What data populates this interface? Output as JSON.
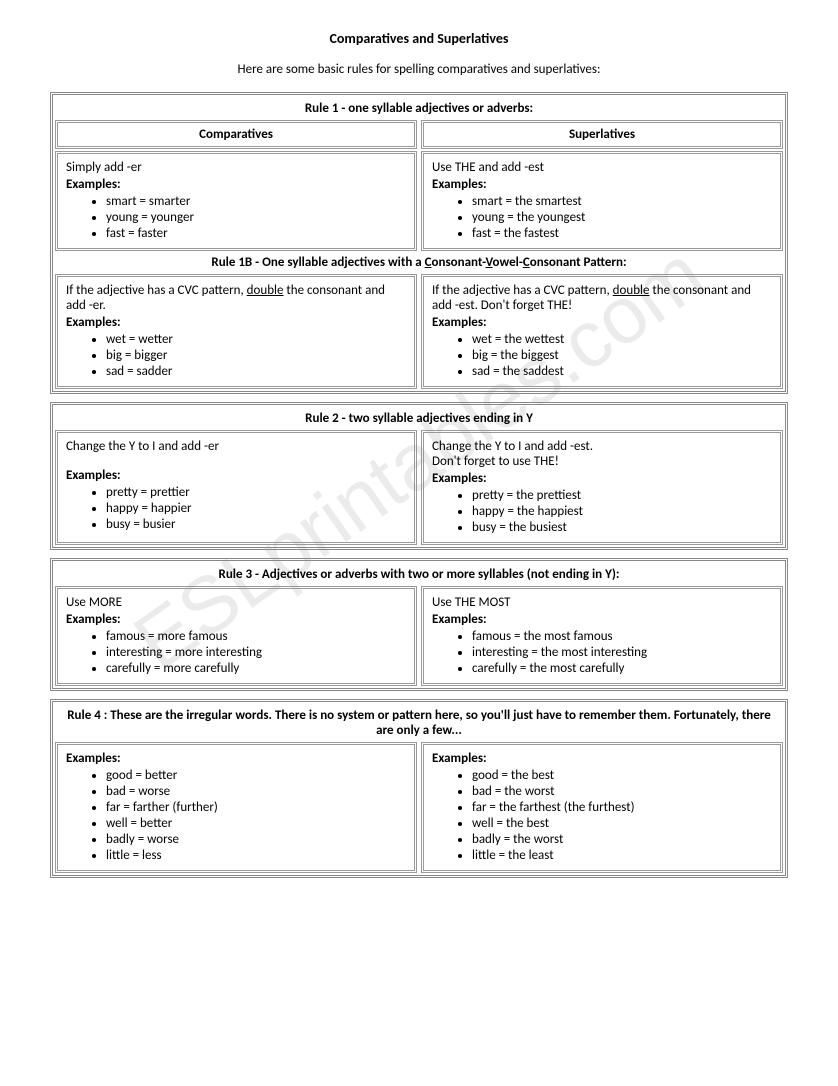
{
  "title": "Comparatives and Superlatives",
  "intro": "Here are some basic rules for spelling comparatives and superlatives:",
  "watermark": "ESLprintables.com",
  "rules": [
    {
      "title": "Rule 1 - one syllable adjectives or adverbs:",
      "headers": {
        "left": "Comparatives",
        "right": "Superlatives"
      },
      "left": {
        "instruction": "Simply add -er",
        "examples_label": "Examples:",
        "items": [
          "smart = smarter",
          "young = younger",
          "fast = faster"
        ]
      },
      "right": {
        "instruction": "Use THE  and add -est",
        "examples_label": "Examples:",
        "items": [
          "smart = the smartest",
          "young = the youngest",
          "fast = the fastest"
        ]
      }
    },
    {
      "title_html": "Rule 1B - One syllable adjectives with a <span class=\"underline\">C</span>onsonant-<span class=\"underline\">V</span>owel-<span class=\"underline\">C</span>onsonant Pattern:",
      "left": {
        "instruction_html": "If the adjective has a CVC pattern, <span class=\"underline\">double</span> the consonant and add -er.",
        "examples_label": "Examples:",
        "items": [
          "wet = wetter",
          "big = bigger",
          "sad = sadder"
        ]
      },
      "right": {
        "instruction_html": "If the adjective has a CVC pattern, <span class=\"underline\">double</span> the consonant and add -est. Don't forget THE!",
        "examples_label": "Examples:",
        "items": [
          "wet = the wettest",
          "big = the biggest",
          "sad = the saddest"
        ]
      }
    },
    {
      "title": "Rule 2 - two syllable adjectives ending in Y",
      "left": {
        "instruction": "Change the Y to I and add -er",
        "examples_label": "Examples:",
        "items": [
          "pretty = prettier",
          "happy = happier",
          "busy = busier"
        ]
      },
      "right": {
        "instruction": "Change the Y to I and add -est.\nDon't forget to use THE!",
        "examples_label": "Examples:",
        "items": [
          "pretty = the prettiest",
          "happy = the happiest",
          "busy = the busiest"
        ]
      }
    },
    {
      "title": "Rule 3 - Adjectives or adverbs with two or more syllables (not ending in Y):",
      "left": {
        "instruction": " Use MORE",
        "examples_label": "Examples:",
        "items": [
          "famous = more famous",
          "interesting = more interesting",
          "carefully = more carefully"
        ]
      },
      "right": {
        "instruction": "Use THE MOST",
        "examples_label": "Examples:",
        "items": [
          "famous = the most famous",
          "interesting = the most interesting",
          "carefully = the most carefully"
        ]
      }
    },
    {
      "title": "Rule 4 : These are the irregular words. There is no system or pattern here, so you'll just have to remember them. Fortunately, there are only a few...",
      "left": {
        "examples_label": "Examples:",
        "items": [
          "good = better",
          "bad = worse",
          "far = farther (further)",
          "well = better",
          "badly = worse",
          "little = less"
        ]
      },
      "right": {
        "examples_label": "Examples:",
        "items": [
          "good = the best",
          "bad = the worst",
          "far = the farthest (the furthest)",
          "well = the best",
          "badly = the worst",
          "little = the least"
        ]
      }
    }
  ]
}
